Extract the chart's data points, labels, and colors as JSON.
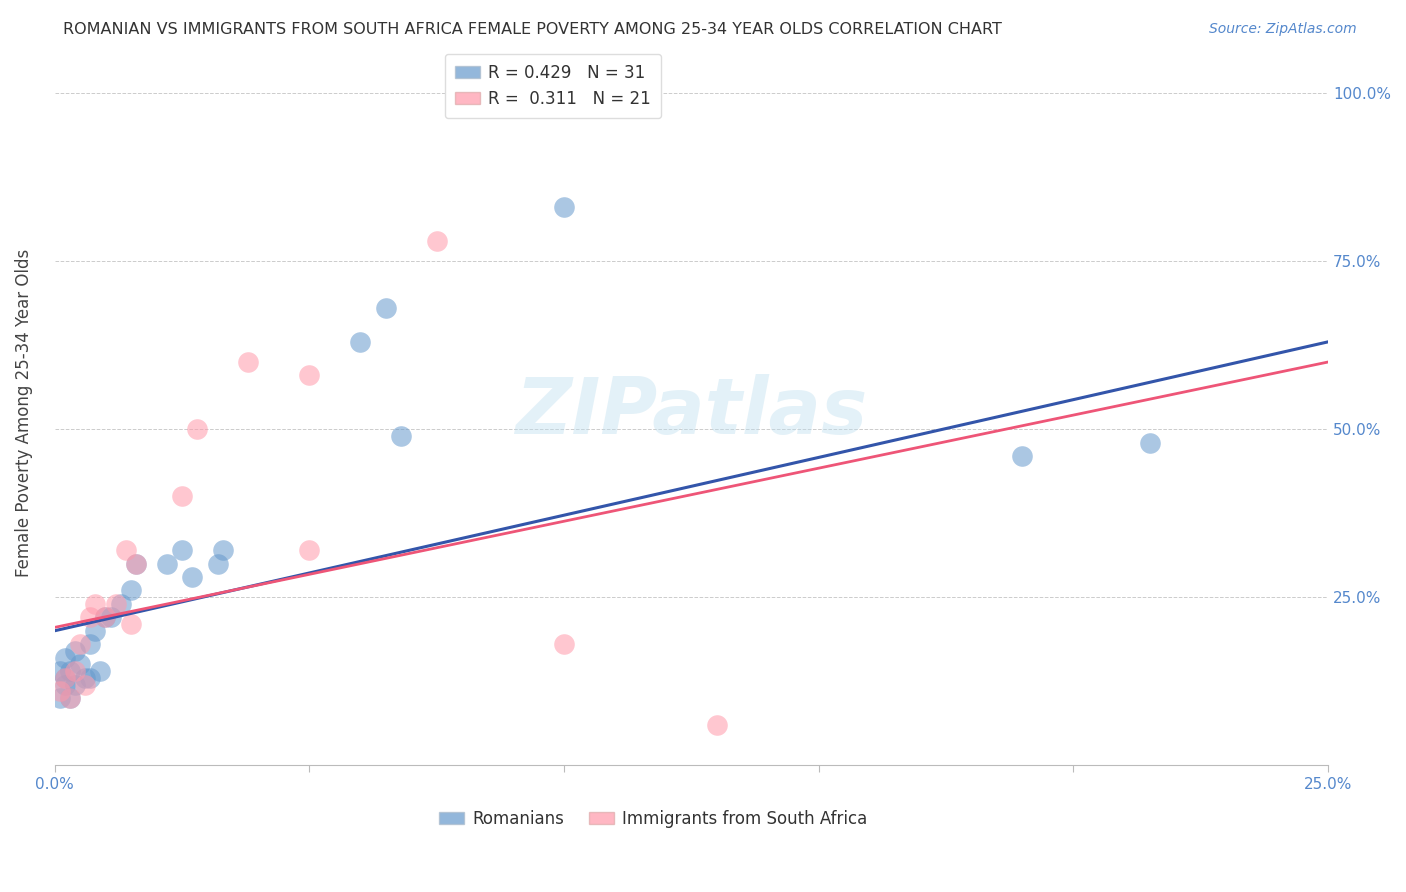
{
  "title": "ROMANIAN VS IMMIGRANTS FROM SOUTH AFRICA FEMALE POVERTY AMONG 25-34 YEAR OLDS CORRELATION CHART",
  "source": "Source: ZipAtlas.com",
  "ylabel": "Female Poverty Among 25-34 Year Olds",
  "xlim": [
    0.0,
    0.25
  ],
  "ylim": [
    0.0,
    1.05
  ],
  "legend_r1": "R = 0.429",
  "legend_n1": "N = 31",
  "legend_r2": "R =  0.311",
  "legend_n2": "N = 21",
  "color_blue": "#6699CC",
  "color_pink": "#FF99AA",
  "color_blue_line": "#3355AA",
  "color_pink_line": "#EE5577",
  "romanians_x": [
    0.001,
    0.001,
    0.002,
    0.002,
    0.002,
    0.003,
    0.003,
    0.004,
    0.004,
    0.005,
    0.006,
    0.007,
    0.007,
    0.008,
    0.009,
    0.01,
    0.011,
    0.013,
    0.015,
    0.016,
    0.022,
    0.025,
    0.027,
    0.032,
    0.033,
    0.06,
    0.065,
    0.068,
    0.1,
    0.19,
    0.215
  ],
  "romanians_y": [
    0.14,
    0.1,
    0.13,
    0.16,
    0.12,
    0.14,
    0.1,
    0.17,
    0.12,
    0.15,
    0.13,
    0.18,
    0.13,
    0.2,
    0.14,
    0.22,
    0.22,
    0.24,
    0.26,
    0.3,
    0.3,
    0.32,
    0.28,
    0.3,
    0.32,
    0.63,
    0.68,
    0.49,
    0.83,
    0.46,
    0.48
  ],
  "south_africa_x": [
    0.001,
    0.002,
    0.003,
    0.004,
    0.005,
    0.006,
    0.007,
    0.008,
    0.01,
    0.012,
    0.014,
    0.015,
    0.016,
    0.025,
    0.028,
    0.038,
    0.05,
    0.05,
    0.075,
    0.1,
    0.13
  ],
  "south_africa_y": [
    0.11,
    0.13,
    0.1,
    0.14,
    0.18,
    0.12,
    0.22,
    0.24,
    0.22,
    0.24,
    0.32,
    0.21,
    0.3,
    0.4,
    0.5,
    0.6,
    0.58,
    0.32,
    0.78,
    0.18,
    0.06
  ],
  "line_blue_x0": 0.0,
  "line_blue_y0": 0.2,
  "line_blue_x1": 0.25,
  "line_blue_y1": 0.63,
  "line_pink_x0": 0.0,
  "line_pink_y0": 0.205,
  "line_pink_x1": 0.25,
  "line_pink_y1": 0.6,
  "watermark_text": "ZIPatlas",
  "background_color": "#ffffff",
  "grid_color": "#cccccc"
}
